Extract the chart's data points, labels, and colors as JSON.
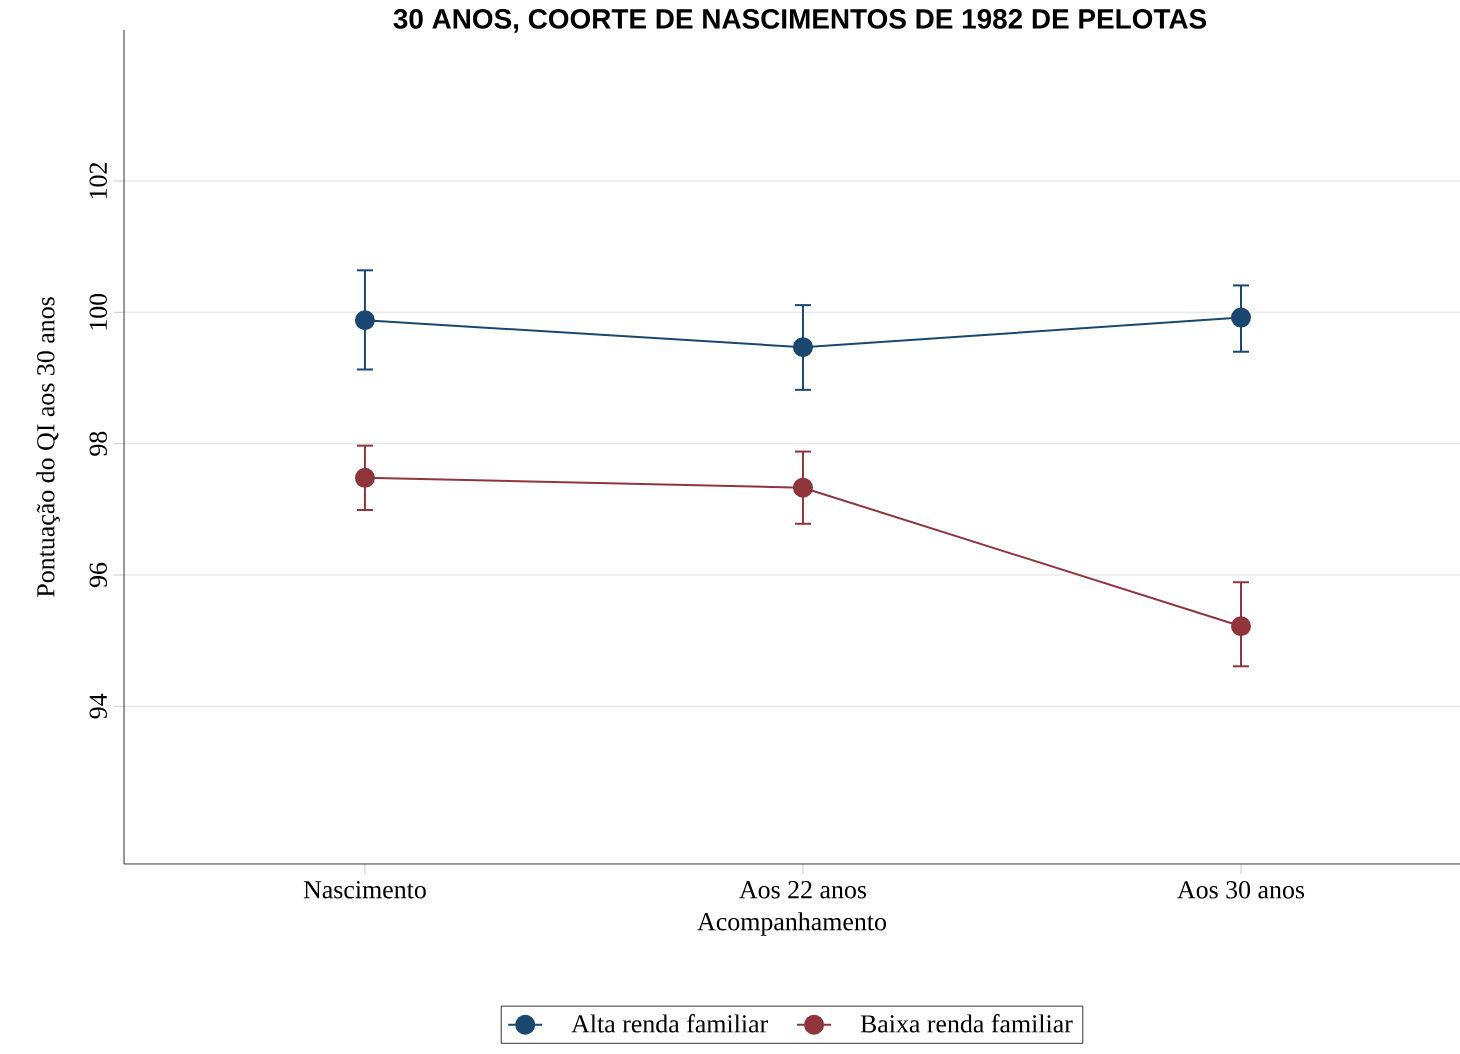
{
  "chart_data": {
    "type": "line",
    "title": "30 ANOS, COORTE DE NASCIMENTOS DE 1982 DE PELOTAS",
    "xlabel": "Acompanhamento",
    "ylabel": "Pontuação do QI aos 30 anos",
    "categories": [
      "Nascimento",
      "Aos 22 anos",
      "Aos 30 anos"
    ],
    "series": [
      {
        "name": "Alta renda familiar",
        "color": "#1a476f",
        "values": [
          99.88,
          99.47,
          99.92
        ],
        "errors": [
          [
            99.13,
            100.64
          ],
          [
            98.82,
            100.11
          ],
          [
            99.4,
            100.41
          ]
        ]
      },
      {
        "name": "Baixa renda familiar",
        "color": "#90353b",
        "values": [
          97.48,
          97.33,
          95.22
        ],
        "errors": [
          [
            96.99,
            97.97
          ],
          [
            96.78,
            97.88
          ],
          [
            94.61,
            95.89
          ]
        ]
      }
    ],
    "ylim": [
      91.6,
      104.3
    ],
    "yticks": [
      94,
      96,
      98,
      100,
      102
    ],
    "grid": "y",
    "legend": "bottom",
    "marker": "circle",
    "line_style": "solid"
  }
}
